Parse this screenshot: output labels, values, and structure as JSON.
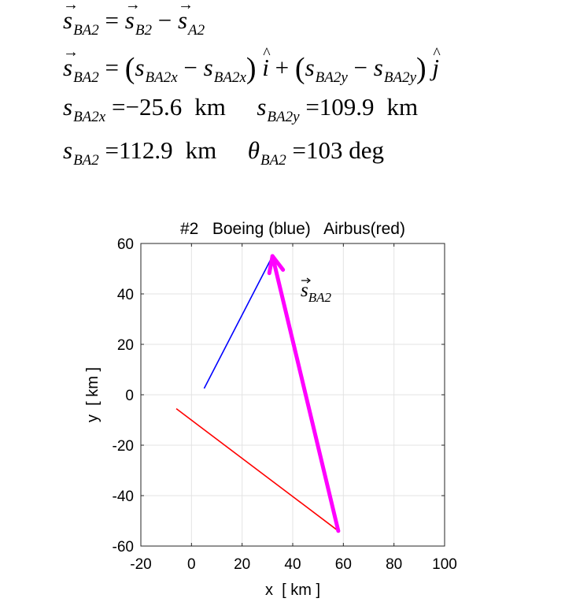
{
  "equations": {
    "line1": {
      "lhs_sub": "BA2",
      "eq": "=",
      "t1_sub": "B2",
      "minus": "−",
      "t2_sub": "A2"
    },
    "line2": {
      "lhs_sub": "BA2",
      "eq": "=",
      "a_sub": "BA2x",
      "b_sub": "BA2x",
      "c_sub": "BA2y",
      "d_sub": "BA2y",
      "i": "i",
      "j": "j"
    },
    "line3": {
      "x_sub": "BA2x",
      "x_val": "=−25.6",
      "x_unit": "km",
      "y_sub": "BA2y",
      "y_val": "=109.9",
      "y_unit": "km"
    },
    "line4": {
      "s_sub": "BA2",
      "s_val": "=112.9",
      "s_unit": "km",
      "theta_sub": "BA2",
      "theta_val": "=103 deg"
    }
  },
  "chart_data": {
    "type": "line",
    "title": "#2   Boeing (blue)   Airbus(red)",
    "xlabel": "x  [ km ]",
    "ylabel": "y  [ km ]",
    "xlim": [
      -20,
      100
    ],
    "ylim": [
      -60,
      60
    ],
    "xticks": [
      "-20",
      "0",
      "20",
      "40",
      "60",
      "80",
      "100"
    ],
    "yticks": [
      "-60",
      "-40",
      "-20",
      "0",
      "20",
      "40",
      "60"
    ],
    "grid": true,
    "series": [
      {
        "color": "#0000ff",
        "x": [
          5,
          32
        ],
        "y": [
          2.5,
          55
        ]
      },
      {
        "color": "#ff0000",
        "x": [
          -6,
          58
        ],
        "y": [
          -5.5,
          -54
        ]
      }
    ],
    "vector": {
      "label_sub": "BA2",
      "color": "#ff00ff",
      "from": [
        58,
        -54
      ],
      "to": [
        32,
        55
      ]
    }
  }
}
